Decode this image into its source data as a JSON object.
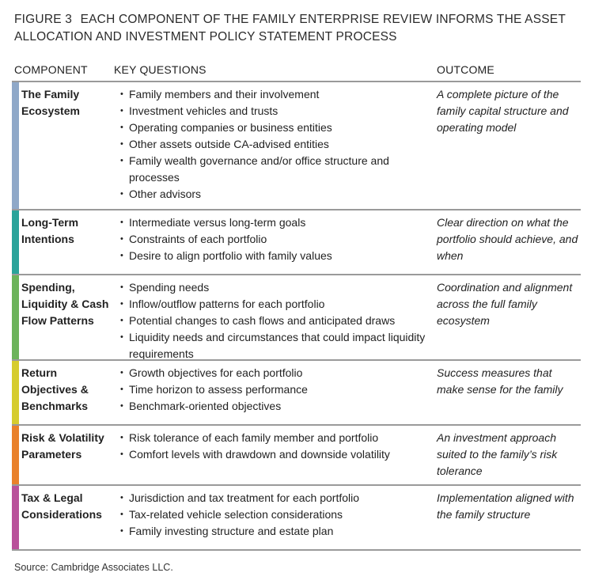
{
  "figure": {
    "label": "FIGURE 3",
    "title": "EACH COMPONENT OF THE FAMILY ENTERPRISE REVIEW INFORMS THE ASSET ALLOCATION AND INVESTMENT POLICY STATEMENT PROCESS"
  },
  "headers": {
    "component": "COMPONENT",
    "questions": "KEY QUESTIONS",
    "outcome": "OUTCOME"
  },
  "rows": [
    {
      "color": "#8fa8c8",
      "component": "The Family Ecosystem",
      "questions": [
        "Family members and their involvement",
        "Investment vehicles and trusts",
        "Operating companies or business entities",
        "Other assets outside CA-advised entities",
        "Family wealth governance and/or office structure and processes",
        "Other advisors"
      ],
      "outcome": "A complete picture of the family capital structure and operating model"
    },
    {
      "color": "#2aa39a",
      "component": "Long-Term Intentions",
      "questions": [
        "Intermediate versus long-term goals",
        "Constraints of each portfolio",
        "Desire to align portfolio with family values"
      ],
      "outcome": "Clear direction on what the portfolio should achieve, and when"
    },
    {
      "color": "#6cb35b",
      "component": "Spending, Liquidity & Cash Flow Patterns",
      "questions": [
        "Spending needs",
        "Inflow/outflow patterns for each portfolio",
        "Potential changes to cash flows and anticipated draws",
        "Liquidity needs and circumstances that could impact liquidity requirements"
      ],
      "outcome": "Coordination and alignment across the full family ecosystem"
    },
    {
      "color": "#d6cc2e",
      "component": "Return Objectives & Benchmarks",
      "questions": [
        "Growth objectives for each portfolio",
        "Time horizon to assess performance",
        "Benchmark-oriented objectives"
      ],
      "outcome": "Success measures that make sense for the family"
    },
    {
      "color": "#e9812b",
      "component": "Risk & Volatility Parameters",
      "questions": [
        "Risk tolerance of each family member and portfolio",
        "Comfort levels with drawdown and downside volatility"
      ],
      "outcome": "An investment approach suited to the family’s risk tolerance"
    },
    {
      "color": "#b9519a",
      "component": "Tax & Legal Considerations",
      "questions": [
        "Jurisdiction and  tax treatment for each portfolio",
        "Tax-related vehicle selection considerations",
        "Family investing structure and estate plan"
      ],
      "outcome": "Implementation aligned with the family structure"
    }
  ],
  "source": "Source: Cambridge Associates LLC."
}
